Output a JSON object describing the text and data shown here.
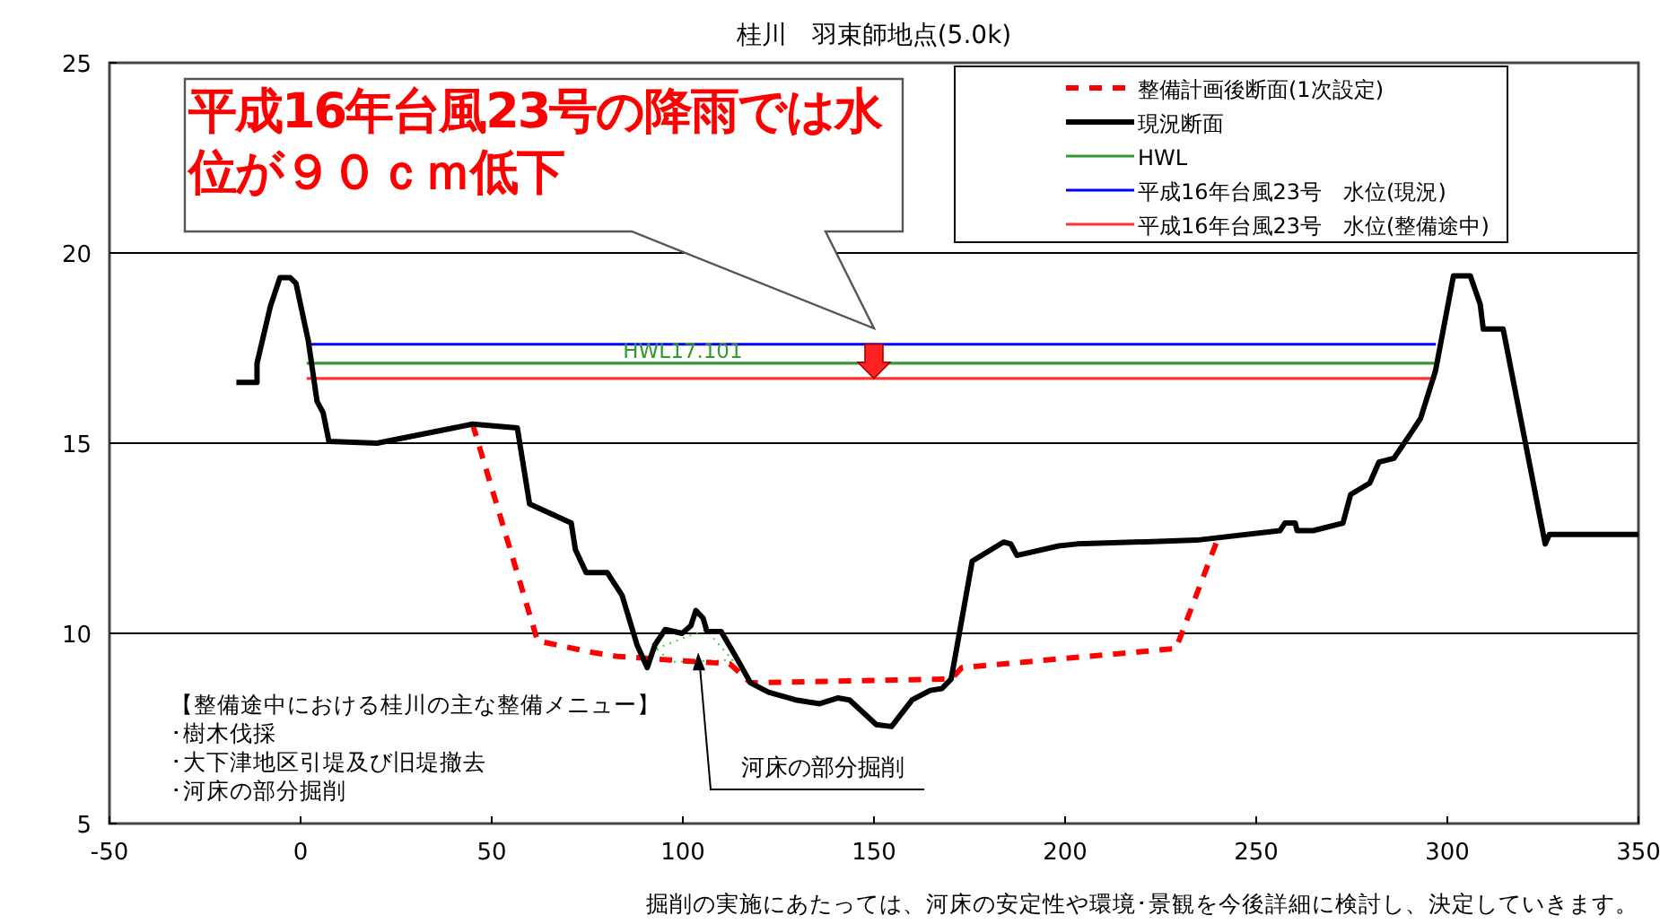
{
  "chart_data": {
    "type": "line",
    "title": "桂川　羽束師地点(5.0k)",
    "xlim": [
      -50,
      350
    ],
    "xticks": [
      -50,
      0,
      50,
      100,
      150,
      200,
      250,
      300,
      350
    ],
    "ylim": [
      5,
      25
    ],
    "yticks": [
      5,
      10,
      15,
      20,
      25
    ],
    "grid": "y",
    "legend": "top right",
    "marker": "none",
    "series": [
      {
        "name": "整備計画後断面(1次設定)",
        "color": "#ff0000",
        "line_style": "dashed",
        "x": [
          45,
          62,
          76.3,
          82.5,
          96.6,
          112.3,
          117.7,
          170.2,
          173,
          229,
          240
        ],
        "values": [
          15.5,
          9.8,
          9.5,
          9.4,
          9.3,
          9.2,
          8.7,
          8.8,
          9.1,
          9.6,
          12.5
        ]
      },
      {
        "name": "現況断面",
        "color": "#000000",
        "line_style": "solid",
        "x": [
          -16.8,
          -11.4,
          -11.4,
          -7.9,
          -5.4,
          -2.7,
          -1.2,
          2,
          4.3,
          5.9,
          7.4,
          20,
          45,
          56.7,
          59.9,
          70.8,
          71.9,
          74.7,
          80.2,
          84.1,
          88,
          90.7,
          92.7,
          95.4,
          99.8,
          102.1,
          103.4,
          105.3,
          106.3,
          110,
          113.8,
          117.7,
          122.4,
          129.5,
          135.8,
          140.5,
          143.6,
          150.6,
          154.6,
          160,
          164.7,
          167.8,
          170.2,
          175.7,
          183.9,
          185.8,
          187.4,
          198.4,
          203.1,
          234.4,
          256.2,
          257.5,
          260.2,
          260.7,
          264.9,
          272.7,
          274.7,
          279.7,
          282.1,
          286,
          290.4,
          293,
          296.9,
          301.6,
          306,
          308.6,
          309.4,
          314.6,
          325.6,
          326.7,
          350
        ],
        "values": [
          16.6,
          16.6,
          17.1,
          18.6,
          19.35,
          19.35,
          19.2,
          17.7,
          16.1,
          15.8,
          15.05,
          15,
          15.5,
          15.4,
          13.4,
          12.9,
          12.2,
          11.6,
          11.6,
          11,
          9.7,
          9.1,
          9.7,
          10.1,
          10,
          10.2,
          10.6,
          10.4,
          10.05,
          10.05,
          9.4,
          8.7,
          8.45,
          8.25,
          8.15,
          8.3,
          8.25,
          7.6,
          7.55,
          8.25,
          8.5,
          8.55,
          8.8,
          11.9,
          12.4,
          12.35,
          12.05,
          12.3,
          12.35,
          12.45,
          12.7,
          12.9,
          12.9,
          12.7,
          12.7,
          12.9,
          13.65,
          13.95,
          14.5,
          14.6,
          15.25,
          15.65,
          16.9,
          19.4,
          19.4,
          18.65,
          18,
          18,
          12.35,
          12.6,
          12.6
        ]
      },
      {
        "name": "HWL",
        "color": "#339933",
        "line_style": "solid",
        "x": [
          1.6,
          297
        ],
        "values": [
          17.1,
          17.1
        ]
      },
      {
        "name": "平成16年台風23号　水位(現況)",
        "color": "#0000ff",
        "line_style": "solid",
        "x": [
          1.6,
          297
        ],
        "values": [
          17.6,
          17.6
        ]
      },
      {
        "name": "平成16年台風23号　水位(整備途中)",
        "color": "#ff3333",
        "line_style": "solid",
        "x": [
          1.6,
          297
        ],
        "values": [
          16.7,
          16.7
        ]
      }
    ],
    "annotations": [
      "平成16年台風23号の降雨では水位が９０ｃｍ低下",
      {
        "text": "HWL17.101",
        "x": 100,
        "y": 17.1
      },
      "【整備途中における桂川の主な整備メニュー】",
      "･樹木伐採",
      "･大下津地区引堤及び旧堤撤去",
      "･河床の部分掘削",
      {
        "text": "河床の部分掘削",
        "x": 104,
        "y": 9.5
      },
      "掘削の実施にあたっては、河床の安定性や環境･景観を今後詳細に検討し、決定していきます。"
    ]
  }
}
